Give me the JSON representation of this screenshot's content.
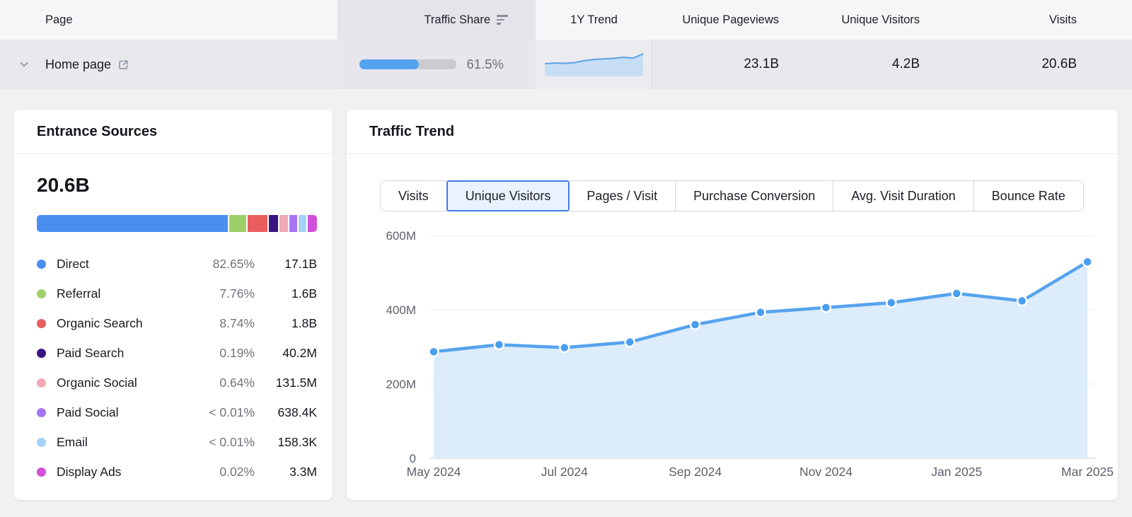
{
  "table": {
    "columns": {
      "page": "Page",
      "traffic_share": "Traffic Share",
      "trend": "1Y Trend",
      "unique_pageviews": "Unique Pageviews",
      "unique_visitors": "Unique Visitors",
      "visits": "Visits"
    },
    "row": {
      "page": "Home page",
      "traffic_share_pct": "61.5%",
      "traffic_share_fill": 61.5,
      "unique_pageviews": "23.1B",
      "unique_visitors": "4.2B",
      "visits": "20.6B"
    }
  },
  "entrance_sources": {
    "title": "Entrance Sources",
    "total": "20.6B",
    "items": [
      {
        "label": "Direct",
        "pct": "82.65%",
        "value": "17.1B",
        "color": "#4a8ff0",
        "bar": 272
      },
      {
        "label": "Referral",
        "pct": "7.76%",
        "value": "1.6B",
        "color": "#9ecf69",
        "bar": 24
      },
      {
        "label": "Organic Search",
        "pct": "8.74%",
        "value": "1.8B",
        "color": "#e95d5d",
        "bar": 29
      },
      {
        "label": "Paid Search",
        "pct": "0.19%",
        "value": "40.2M",
        "color": "#3a1383",
        "bar": 13
      },
      {
        "label": "Organic Social",
        "pct": "0.64%",
        "value": "131.5M",
        "color": "#f0a9b5",
        "bar": 12
      },
      {
        "label": "Paid Social",
        "pct": "< 0.01%",
        "value": "638.4K",
        "color": "#a774f2",
        "bar": 11
      },
      {
        "label": "Email",
        "pct": "< 0.01%",
        "value": "158.3K",
        "color": "#a5d3f7",
        "bar": 11
      },
      {
        "label": "Display Ads",
        "pct": "0.02%",
        "value": "3.3M",
        "color": "#d150da",
        "bar": 13
      }
    ]
  },
  "traffic_trend": {
    "title": "Traffic Trend",
    "tabs": [
      {
        "label": "Visits",
        "selected": false
      },
      {
        "label": "Unique Visitors",
        "selected": true
      },
      {
        "label": "Pages / Visit",
        "selected": false
      },
      {
        "label": "Purchase Conversion",
        "selected": false
      },
      {
        "label": "Avg. Visit Duration",
        "selected": false
      },
      {
        "label": "Bounce Rate",
        "selected": false
      }
    ]
  },
  "chart_data": {
    "type": "area",
    "title": "Traffic Trend — Unique Visitors",
    "x": [
      "May 2024",
      "Jun 2024",
      "Jul 2024",
      "Aug 2024",
      "Sep 2024",
      "Oct 2024",
      "Nov 2024",
      "Dec 2024",
      "Jan 2025",
      "Feb 2025",
      "Mar 2025"
    ],
    "values_M": [
      287,
      306,
      298,
      313,
      360,
      393,
      406,
      419,
      444,
      424,
      529
    ],
    "xtick_labels": [
      "May 2024",
      "Jul 2024",
      "Sep 2024",
      "Nov 2024",
      "Jan 2025",
      "Mar 2025"
    ],
    "ytick_labels": [
      "0",
      "200M",
      "400M",
      "600M"
    ],
    "ytick_values_M": [
      0,
      200,
      400,
      600
    ],
    "ylim_M": [
      0,
      600
    ],
    "grid": true,
    "legend": "none",
    "line_color": "#55a3ee",
    "point_color": "#499ef0",
    "area_color": "#ddecfa",
    "sparkline_line_color": "#5ba3e8",
    "sparkline_area_color": "#c7def5"
  }
}
